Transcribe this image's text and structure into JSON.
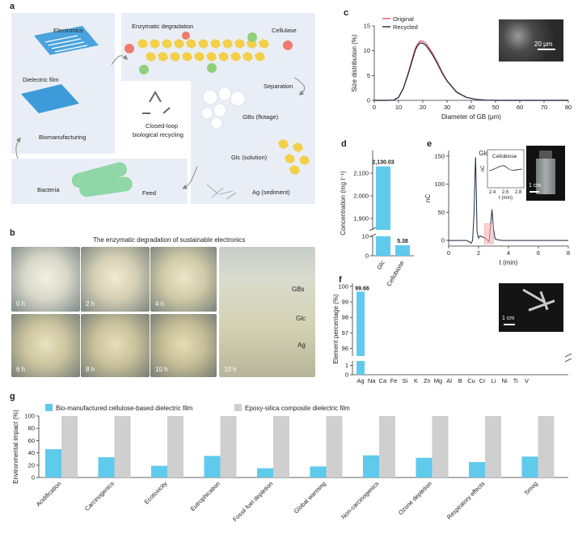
{
  "panels": {
    "a": "a",
    "b": "b",
    "c": "c",
    "d": "d",
    "e": "e",
    "f": "f",
    "g": "g"
  },
  "panel_a": {
    "electronics": "Electronics",
    "dielectric_film": "Dielectric film",
    "biomanufacturing": "Biomanufacturing",
    "enzymatic_degradation": "Enzymatic degradation",
    "cellulase": "Cellulase",
    "separation": "Separation",
    "closed_loop": "Closed-loop",
    "biological_recycling": "biological recycling",
    "gbs_flotage": "GBs (flotage)",
    "glc_solution": "Glc (solution)",
    "ag_sediment": "Ag (sediment)",
    "bacteria": "Bacteria",
    "feed": "Feed"
  },
  "panel_b": {
    "title": "The enzymatic degradation of sustainable electronics",
    "times": [
      "0 h",
      "2 h",
      "4 h",
      "6 h",
      "8 h",
      "10 h"
    ],
    "beaker_time": "10 h",
    "beaker_labels": [
      "GBs",
      "Glc",
      "Ag"
    ]
  },
  "chart_data": [
    {
      "id": "c",
      "type": "line",
      "xlabel": "Diameter of GB (μm)",
      "ylabel": "Size distribution (%)",
      "xlim": [
        0,
        80
      ],
      "ylim": [
        0,
        15
      ],
      "xticks": [
        0,
        10,
        20,
        30,
        40,
        50,
        60,
        70,
        80
      ],
      "yticks": [
        0,
        5,
        10,
        15
      ],
      "legend_position": "top-left",
      "scale_bar": "20 μm",
      "series": [
        {
          "name": "Original",
          "color": "#e8566a",
          "x": [
            0,
            5,
            8,
            10,
            12,
            14,
            16,
            17,
            18,
            19,
            20,
            21,
            22,
            24,
            26,
            28,
            30,
            34,
            38,
            42,
            46,
            50,
            55,
            60,
            65,
            80
          ],
          "y": [
            0,
            0,
            0.05,
            0.6,
            2.5,
            5.6,
            9.0,
            10.6,
            11.5,
            12.0,
            11.9,
            11.6,
            11.0,
            9.5,
            7.7,
            5.7,
            4.0,
            1.7,
            0.6,
            0.2,
            0.05,
            0,
            0,
            0,
            0,
            0
          ]
        },
        {
          "name": "Recycled",
          "color": "#1a2a40",
          "x": [
            0,
            5,
            8,
            10,
            12,
            14,
            16,
            17,
            18,
            19,
            20,
            21,
            22,
            24,
            26,
            28,
            30,
            34,
            38,
            42,
            46,
            50,
            55,
            60,
            65,
            80
          ],
          "y": [
            0,
            0,
            0.05,
            0.6,
            2.4,
            5.3,
            8.6,
            10.2,
            11.1,
            11.6,
            11.5,
            11.2,
            10.6,
            9.2,
            7.4,
            5.5,
            3.9,
            1.6,
            0.6,
            0.2,
            0.05,
            0,
            0,
            0,
            0,
            0
          ]
        }
      ]
    },
    {
      "id": "d",
      "type": "bar",
      "ylabel": "Concentration (mg l⁻¹)",
      "categories": [
        "Glc",
        "Cellobiose"
      ],
      "values": [
        2130.03,
        5.38
      ],
      "value_labels": [
        "2,130.03",
        "5.38"
      ],
      "yticks_upper": [
        "1,900",
        "2,000",
        "2,100"
      ],
      "yticks_lower": [
        "0",
        "10"
      ],
      "axis_break": true,
      "color": "#5fcaec"
    },
    {
      "id": "e",
      "type": "line",
      "xlabel": "t (min)",
      "ylabel": "nC",
      "xlim": [
        0,
        8
      ],
      "xticks": [
        0,
        2,
        4,
        6,
        8
      ],
      "yticks": [
        0,
        50,
        100,
        150
      ],
      "peak_label": "Glc",
      "inset": {
        "title": "Cellobiose",
        "xlabel": "t (min)",
        "ylabel": "nC",
        "xticks": [
          "2.4",
          "2.6",
          "2.8"
        ]
      },
      "scale_bar": "1 cm",
      "series": [
        {
          "color": "#1a2a40",
          "x": [
            0,
            1.2,
            1.4,
            1.5,
            1.6,
            1.7,
            1.75,
            1.8,
            1.85,
            1.9,
            2.0,
            2.1,
            2.3,
            2.5,
            2.7,
            2.8,
            2.9,
            3.0,
            3.1,
            3.3,
            3.6,
            4.0,
            5,
            6,
            7,
            8
          ],
          "y": [
            0,
            0,
            -3,
            -5,
            0,
            50,
            110,
            148,
            90,
            15,
            4,
            8,
            6,
            3,
            -2,
            25,
            55,
            20,
            3,
            1,
            0,
            0,
            0,
            0,
            0,
            0
          ]
        }
      ]
    },
    {
      "id": "f",
      "type": "bar",
      "ylabel": "Element percentage (%)",
      "categories": [
        "Ag",
        "Na",
        "Ca",
        "Fe",
        "Si",
        "K",
        "Zn",
        "Mg",
        "Al",
        "B",
        "Cu",
        "Cr",
        "Li",
        "Ni",
        "Ti",
        "V"
      ],
      "values": [
        99.66,
        0,
        0,
        0,
        0,
        0,
        0,
        0,
        0,
        0,
        0,
        0,
        0,
        0,
        0,
        0
      ],
      "value_labels": [
        "99.66"
      ],
      "yticks_upper": [
        "96",
        "97",
        "98",
        "99",
        "100"
      ],
      "yticks_lower": [
        "0",
        "1"
      ],
      "axis_break": true,
      "scale_bar": "1 cm",
      "color": "#5fcaec"
    },
    {
      "id": "g",
      "type": "bar",
      "ylabel": "Environmental impact (%)",
      "ylim": [
        0,
        100
      ],
      "yticks": [
        0,
        20,
        40,
        60,
        80,
        100
      ],
      "legend_position": "top",
      "categories": [
        "Acidification",
        "Carcinogenics",
        "Ecotoxicity",
        "Eutrophication",
        "Fossil fuel depletion",
        "Global warming",
        "Non-carcinogenics",
        "Ozone depletion",
        "Respiratory effects",
        "Smog"
      ],
      "series": [
        {
          "name": "Bio-manufactured cellulose-based dielectric film",
          "color": "#5fcaec",
          "values": [
            46,
            33,
            19,
            35,
            15,
            18,
            36,
            32,
            25,
            34
          ]
        },
        {
          "name": "Epoxy-silica composite dielectric film",
          "color": "#cfcfcf",
          "values": [
            100,
            100,
            100,
            100,
            100,
            100,
            100,
            100,
            100,
            100
          ]
        }
      ]
    }
  ]
}
